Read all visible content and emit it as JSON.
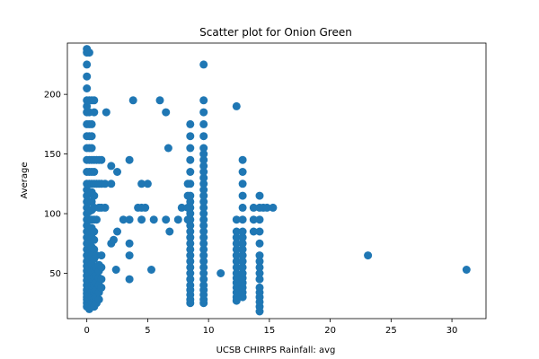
{
  "chart_data": {
    "type": "scatter",
    "title": "Scatter plot for Onion Green",
    "xlabel": "UCSB CHIRPS Rainfall: avg",
    "ylabel": "Average",
    "xlim": [
      -1.6,
      32.8
    ],
    "ylim": [
      12,
      243
    ],
    "xticks": [
      0,
      5,
      10,
      15,
      20,
      25,
      30
    ],
    "yticks": [
      50,
      100,
      150,
      200
    ],
    "grid": false,
    "marker_color": "#1f77b4",
    "series": [
      {
        "points": [
          [
            0,
            22
          ],
          [
            0,
            25
          ],
          [
            0,
            28
          ],
          [
            0,
            30
          ],
          [
            0,
            33
          ],
          [
            0,
            36
          ],
          [
            0,
            40
          ],
          [
            0,
            44
          ],
          [
            0,
            48
          ],
          [
            0,
            52
          ],
          [
            0,
            56
          ],
          [
            0,
            60
          ],
          [
            0,
            65
          ],
          [
            0,
            70
          ],
          [
            0,
            75
          ],
          [
            0,
            80
          ],
          [
            0,
            85
          ],
          [
            0,
            90
          ],
          [
            0,
            95
          ],
          [
            0,
            100
          ],
          [
            0,
            105
          ],
          [
            0,
            110
          ],
          [
            0,
            115
          ],
          [
            0,
            120
          ],
          [
            0,
            125
          ],
          [
            0,
            135
          ],
          [
            0,
            145
          ],
          [
            0,
            155
          ],
          [
            0,
            165
          ],
          [
            0,
            175
          ],
          [
            0,
            185
          ],
          [
            0,
            190
          ],
          [
            0,
            195
          ],
          [
            0,
            205
          ],
          [
            0,
            215
          ],
          [
            0,
            225
          ],
          [
            0,
            235
          ],
          [
            0,
            238
          ],
          [
            0.2,
            20
          ],
          [
            0.2,
            24
          ],
          [
            0.2,
            28
          ],
          [
            0.2,
            32
          ],
          [
            0.2,
            38
          ],
          [
            0.2,
            45
          ],
          [
            0.2,
            50
          ],
          [
            0.2,
            55
          ],
          [
            0.2,
            62
          ],
          [
            0.2,
            68
          ],
          [
            0.2,
            75
          ],
          [
            0.2,
            82
          ],
          [
            0.2,
            88
          ],
          [
            0.2,
            95
          ],
          [
            0.2,
            102
          ],
          [
            0.2,
            110
          ],
          [
            0.2,
            118
          ],
          [
            0.2,
            125
          ],
          [
            0.2,
            135
          ],
          [
            0.2,
            145
          ],
          [
            0.2,
            155
          ],
          [
            0.2,
            165
          ],
          [
            0.2,
            175
          ],
          [
            0.2,
            185
          ],
          [
            0.2,
            195
          ],
          [
            0.2,
            235
          ],
          [
            0.4,
            22
          ],
          [
            0.4,
            26
          ],
          [
            0.4,
            30
          ],
          [
            0.4,
            35
          ],
          [
            0.4,
            40
          ],
          [
            0.4,
            46
          ],
          [
            0.4,
            52
          ],
          [
            0.4,
            58
          ],
          [
            0.4,
            65
          ],
          [
            0.4,
            72
          ],
          [
            0.4,
            80
          ],
          [
            0.4,
            88
          ],
          [
            0.4,
            95
          ],
          [
            0.4,
            103
          ],
          [
            0.4,
            110
          ],
          [
            0.4,
            118
          ],
          [
            0.4,
            125
          ],
          [
            0.4,
            135
          ],
          [
            0.4,
            145
          ],
          [
            0.4,
            155
          ],
          [
            0.4,
            165
          ],
          [
            0.4,
            175
          ],
          [
            0.4,
            195
          ],
          [
            0.6,
            22
          ],
          [
            0.6,
            28
          ],
          [
            0.6,
            34
          ],
          [
            0.6,
            40
          ],
          [
            0.6,
            47
          ],
          [
            0.6,
            54
          ],
          [
            0.6,
            62
          ],
          [
            0.6,
            70
          ],
          [
            0.6,
            78
          ],
          [
            0.6,
            85
          ],
          [
            0.6,
            95
          ],
          [
            0.6,
            105
          ],
          [
            0.6,
            115
          ],
          [
            0.6,
            125
          ],
          [
            0.6,
            135
          ],
          [
            0.6,
            145
          ],
          [
            0.6,
            185
          ],
          [
            0.6,
            195
          ],
          [
            0.8,
            25
          ],
          [
            0.8,
            30
          ],
          [
            0.8,
            36
          ],
          [
            0.8,
            42
          ],
          [
            0.8,
            48
          ],
          [
            0.8,
            55
          ],
          [
            0.8,
            65
          ],
          [
            0.8,
            95
          ],
          [
            0.8,
            125
          ],
          [
            0.8,
            145
          ],
          [
            1.0,
            28
          ],
          [
            1.0,
            34
          ],
          [
            1.0,
            40
          ],
          [
            1.0,
            46
          ],
          [
            1.0,
            52
          ],
          [
            1.0,
            57
          ],
          [
            1.0,
            105
          ],
          [
            1.0,
            125
          ],
          [
            1.0,
            145
          ],
          [
            1.2,
            38
          ],
          [
            1.2,
            45
          ],
          [
            1.2,
            55
          ],
          [
            1.2,
            65
          ],
          [
            1.2,
            105
          ],
          [
            1.2,
            125
          ],
          [
            1.2,
            145
          ],
          [
            1.5,
            105
          ],
          [
            1.5,
            125
          ],
          [
            1.6,
            185
          ],
          [
            2.0,
            75
          ],
          [
            2.0,
            125
          ],
          [
            2.0,
            140
          ],
          [
            2.2,
            78
          ],
          [
            2.4,
            53
          ],
          [
            2.5,
            85
          ],
          [
            2.5,
            135
          ],
          [
            3.0,
            95
          ],
          [
            3.5,
            45
          ],
          [
            3.5,
            65
          ],
          [
            3.5,
            75
          ],
          [
            3.5,
            95
          ],
          [
            3.5,
            145
          ],
          [
            3.8,
            195
          ],
          [
            4.2,
            105
          ],
          [
            4.5,
            95
          ],
          [
            4.5,
            105
          ],
          [
            4.5,
            125
          ],
          [
            4.8,
            105
          ],
          [
            5.0,
            125
          ],
          [
            5.3,
            53
          ],
          [
            5.5,
            95
          ],
          [
            6.0,
            195
          ],
          [
            6.5,
            95
          ],
          [
            6.5,
            185
          ],
          [
            6.7,
            155
          ],
          [
            6.8,
            85
          ],
          [
            7.5,
            95
          ],
          [
            7.8,
            105
          ],
          [
            8.3,
            95
          ],
          [
            8.3,
            105
          ],
          [
            8.3,
            115
          ],
          [
            8.3,
            125
          ],
          [
            8.5,
            25
          ],
          [
            8.5,
            28
          ],
          [
            8.5,
            32
          ],
          [
            8.5,
            36
          ],
          [
            8.5,
            40
          ],
          [
            8.5,
            45
          ],
          [
            8.5,
            50
          ],
          [
            8.5,
            55
          ],
          [
            8.5,
            60
          ],
          [
            8.5,
            65
          ],
          [
            8.5,
            70
          ],
          [
            8.5,
            75
          ],
          [
            8.5,
            80
          ],
          [
            8.5,
            85
          ],
          [
            8.5,
            90
          ],
          [
            8.5,
            95
          ],
          [
            8.5,
            100
          ],
          [
            8.5,
            105
          ],
          [
            8.5,
            110
          ],
          [
            8.5,
            115
          ],
          [
            8.5,
            125
          ],
          [
            8.5,
            135
          ],
          [
            8.5,
            145
          ],
          [
            8.5,
            155
          ],
          [
            8.5,
            165
          ],
          [
            8.5,
            175
          ],
          [
            9.6,
            25
          ],
          [
            9.6,
            28
          ],
          [
            9.6,
            32
          ],
          [
            9.6,
            36
          ],
          [
            9.6,
            40
          ],
          [
            9.6,
            45
          ],
          [
            9.6,
            50
          ],
          [
            9.6,
            55
          ],
          [
            9.6,
            60
          ],
          [
            9.6,
            65
          ],
          [
            9.6,
            70
          ],
          [
            9.6,
            75
          ],
          [
            9.6,
            80
          ],
          [
            9.6,
            85
          ],
          [
            9.6,
            90
          ],
          [
            9.6,
            95
          ],
          [
            9.6,
            100
          ],
          [
            9.6,
            105
          ],
          [
            9.6,
            110
          ],
          [
            9.6,
            115
          ],
          [
            9.6,
            120
          ],
          [
            9.6,
            125
          ],
          [
            9.6,
            130
          ],
          [
            9.6,
            135
          ],
          [
            9.6,
            140
          ],
          [
            9.6,
            145
          ],
          [
            9.6,
            150
          ],
          [
            9.6,
            155
          ],
          [
            9.6,
            165
          ],
          [
            9.6,
            175
          ],
          [
            9.6,
            185
          ],
          [
            9.6,
            195
          ],
          [
            9.6,
            225
          ],
          [
            11.0,
            50
          ],
          [
            12.3,
            27
          ],
          [
            12.3,
            30
          ],
          [
            12.3,
            34
          ],
          [
            12.3,
            38
          ],
          [
            12.3,
            42
          ],
          [
            12.3,
            46
          ],
          [
            12.3,
            50
          ],
          [
            12.3,
            55
          ],
          [
            12.3,
            60
          ],
          [
            12.3,
            65
          ],
          [
            12.3,
            70
          ],
          [
            12.3,
            75
          ],
          [
            12.3,
            80
          ],
          [
            12.3,
            85
          ],
          [
            12.3,
            95
          ],
          [
            12.3,
            190
          ],
          [
            12.8,
            30
          ],
          [
            12.8,
            34
          ],
          [
            12.8,
            38
          ],
          [
            12.8,
            42
          ],
          [
            12.8,
            46
          ],
          [
            12.8,
            50
          ],
          [
            12.8,
            55
          ],
          [
            12.8,
            60
          ],
          [
            12.8,
            65
          ],
          [
            12.8,
            70
          ],
          [
            12.8,
            75
          ],
          [
            12.8,
            80
          ],
          [
            12.8,
            85
          ],
          [
            12.8,
            95
          ],
          [
            12.8,
            105
          ],
          [
            12.8,
            115
          ],
          [
            12.8,
            125
          ],
          [
            12.8,
            135
          ],
          [
            12.8,
            145
          ],
          [
            13.7,
            85
          ],
          [
            13.7,
            95
          ],
          [
            13.7,
            105
          ],
          [
            14.2,
            18
          ],
          [
            14.2,
            22
          ],
          [
            14.2,
            26
          ],
          [
            14.2,
            30
          ],
          [
            14.2,
            34
          ],
          [
            14.2,
            38
          ],
          [
            14.2,
            45
          ],
          [
            14.2,
            50
          ],
          [
            14.2,
            55
          ],
          [
            14.2,
            60
          ],
          [
            14.2,
            65
          ],
          [
            14.2,
            75
          ],
          [
            14.2,
            85
          ],
          [
            14.2,
            95
          ],
          [
            14.2,
            105
          ],
          [
            14.2,
            115
          ],
          [
            14.5,
            105
          ],
          [
            14.8,
            105
          ],
          [
            15.3,
            105
          ],
          [
            23.1,
            65
          ],
          [
            31.2,
            53
          ]
        ]
      }
    ]
  }
}
